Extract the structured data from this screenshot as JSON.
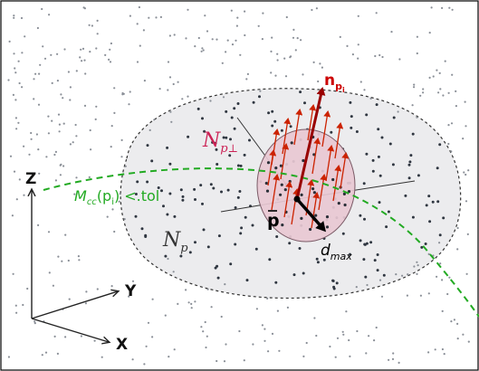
{
  "labels": {
    "normal": {
      "base": "n",
      "sub": "p",
      "subsub": "i"
    },
    "n_perp": {
      "base": "N",
      "sub": "p",
      "sub_mark": "⊥"
    },
    "n_p": {
      "base": "N",
      "sub": "p"
    },
    "curve": {
      "base": "M",
      "sub": "cc",
      "arg_open": "(p",
      "arg_sub": "i",
      "arg_close": ")",
      "condition": "<.tol"
    },
    "p_bar": "p",
    "d_max": {
      "base": "d",
      "sub": "max"
    },
    "axis_z": "Z",
    "axis_y": "Y",
    "axis_x": "X"
  },
  "colors": {
    "frame": "#000000",
    "dots": "#8a8f97",
    "dots_inner": "#2f3640",
    "region_np_fill": "#ececee",
    "region_np_stroke": "#333333",
    "disc_fill": "#e8c8d2",
    "disc_stroke": "#7a5a66",
    "red_arrows": "#cc2200",
    "normal_arrow": "#990000",
    "normal_label": "#cc0000",
    "n_perp_label": "#cc2255",
    "curve": "#22aa22",
    "curve_label": "#22aa22",
    "dmax_arrow": "#000000",
    "axes": "#222222"
  },
  "icons": {
    "axes": "coordinate-axes-icon"
  }
}
